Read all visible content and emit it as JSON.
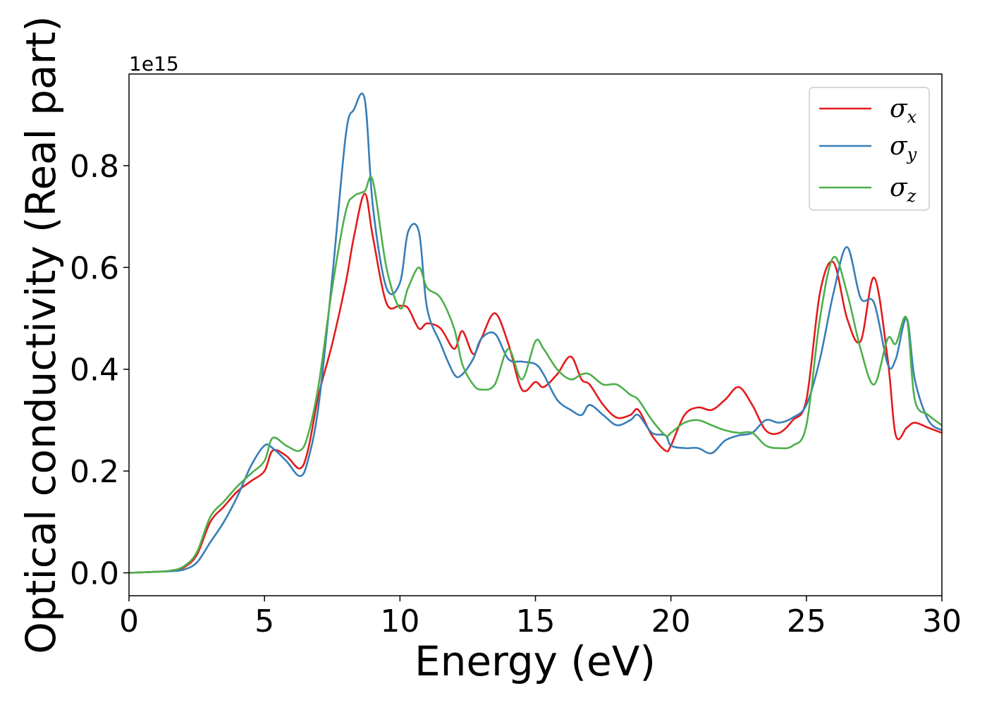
{
  "chart_data": {
    "type": "line",
    "title": "",
    "xlabel": "Energy (eV)",
    "ylabel": "Optical conductivity (Real part)",
    "y_offset_label": "1e15",
    "xlim": [
      0,
      30
    ],
    "ylim": [
      -0.045,
      0.98
    ],
    "x_ticks": [
      0,
      5,
      10,
      15,
      20,
      25,
      30
    ],
    "x_tick_labels": [
      "0",
      "5",
      "10",
      "15",
      "20",
      "25",
      "30"
    ],
    "y_ticks": [
      0.0,
      0.2,
      0.4,
      0.6,
      0.8
    ],
    "y_tick_labels": [
      "0.0",
      "0.2",
      "0.4",
      "0.6",
      "0.8"
    ],
    "grid": false,
    "legend_position": "top-right",
    "series": [
      {
        "name": "σx",
        "symbol": "σ",
        "subscript": "x",
        "color": "#e41a1c",
        "x": [
          0,
          1,
          1.5,
          2,
          2.5,
          3,
          3.5,
          4,
          4.5,
          5,
          5.3,
          5.8,
          6.3,
          6.6,
          7,
          7.5,
          8,
          8.3,
          8.7,
          9,
          9.5,
          10,
          10.3,
          10.7,
          11,
          11.5,
          12,
          12.3,
          12.7,
          13,
          13.5,
          14,
          14.5,
          15,
          15.3,
          15.8,
          16.3,
          16.7,
          17,
          17.5,
          18,
          18.5,
          18.8,
          19.3,
          19.8,
          20,
          20.5,
          21,
          21.5,
          22,
          22.5,
          23,
          23.5,
          24,
          24.5,
          25,
          25.5,
          26,
          26.5,
          27,
          27.5,
          28,
          28.3,
          28.7,
          29,
          29.5,
          30
        ],
        "y": [
          0,
          0.002,
          0.004,
          0.01,
          0.035,
          0.1,
          0.13,
          0.16,
          0.18,
          0.2,
          0.24,
          0.23,
          0.205,
          0.24,
          0.35,
          0.45,
          0.57,
          0.66,
          0.745,
          0.66,
          0.53,
          0.525,
          0.52,
          0.48,
          0.49,
          0.48,
          0.44,
          0.475,
          0.43,
          0.46,
          0.51,
          0.45,
          0.36,
          0.375,
          0.365,
          0.39,
          0.425,
          0.38,
          0.37,
          0.33,
          0.305,
          0.31,
          0.32,
          0.27,
          0.24,
          0.25,
          0.31,
          0.325,
          0.32,
          0.34,
          0.365,
          0.33,
          0.28,
          0.275,
          0.3,
          0.34,
          0.55,
          0.61,
          0.5,
          0.455,
          0.58,
          0.42,
          0.27,
          0.285,
          0.295,
          0.285,
          0.275
        ]
      },
      {
        "name": "σy",
        "symbol": "σ",
        "subscript": "y",
        "color": "#377eb8",
        "x": [
          0,
          1,
          1.5,
          2,
          2.5,
          3,
          3.5,
          4,
          4.5,
          5,
          5.3,
          5.8,
          6.3,
          6.6,
          7,
          7.5,
          8,
          8.3,
          8.7,
          9,
          9.5,
          10,
          10.3,
          10.7,
          11,
          11.5,
          12,
          12.3,
          12.7,
          13,
          13.5,
          14,
          14.5,
          15,
          15.3,
          15.8,
          16.3,
          16.7,
          17,
          17.5,
          18,
          18.5,
          18.8,
          19.3,
          19.8,
          20,
          20.5,
          21,
          21.5,
          22,
          22.5,
          23,
          23.5,
          24,
          24.5,
          25,
          25.5,
          26,
          26.5,
          27,
          27.5,
          28,
          28.3,
          28.7,
          29,
          29.5,
          30
        ],
        "y": [
          0,
          0.002,
          0.003,
          0.006,
          0.02,
          0.06,
          0.1,
          0.15,
          0.21,
          0.25,
          0.245,
          0.22,
          0.19,
          0.22,
          0.33,
          0.58,
          0.86,
          0.91,
          0.93,
          0.72,
          0.56,
          0.57,
          0.67,
          0.67,
          0.52,
          0.45,
          0.39,
          0.39,
          0.42,
          0.46,
          0.47,
          0.42,
          0.415,
          0.41,
          0.39,
          0.34,
          0.32,
          0.31,
          0.33,
          0.31,
          0.29,
          0.3,
          0.31,
          0.275,
          0.27,
          0.25,
          0.245,
          0.245,
          0.235,
          0.26,
          0.27,
          0.275,
          0.3,
          0.295,
          0.305,
          0.33,
          0.42,
          0.55,
          0.64,
          0.54,
          0.53,
          0.41,
          0.42,
          0.5,
          0.38,
          0.3,
          0.28
        ]
      },
      {
        "name": "σz",
        "symbol": "σ",
        "subscript": "z",
        "color": "#4daf4a",
        "x": [
          0,
          1,
          1.5,
          2,
          2.5,
          3,
          3.5,
          4,
          4.5,
          5,
          5.3,
          5.8,
          6.3,
          6.6,
          7,
          7.5,
          8,
          8.3,
          8.7,
          9,
          9.5,
          10,
          10.3,
          10.7,
          11,
          11.5,
          12,
          12.3,
          12.7,
          13,
          13.5,
          14,
          14.5,
          15,
          15.3,
          15.8,
          16.3,
          16.7,
          17,
          17.5,
          18,
          18.5,
          18.8,
          19.3,
          19.8,
          20,
          20.5,
          21,
          21.5,
          22,
          22.5,
          23,
          23.5,
          24,
          24.5,
          25,
          25.5,
          26,
          26.5,
          27,
          27.5,
          28,
          28.3,
          28.7,
          29,
          29.5,
          30
        ],
        "y": [
          0,
          0.002,
          0.004,
          0.012,
          0.04,
          0.11,
          0.14,
          0.17,
          0.195,
          0.22,
          0.265,
          0.25,
          0.24,
          0.27,
          0.37,
          0.56,
          0.71,
          0.74,
          0.75,
          0.77,
          0.6,
          0.52,
          0.56,
          0.6,
          0.56,
          0.54,
          0.48,
          0.41,
          0.37,
          0.36,
          0.37,
          0.44,
          0.38,
          0.455,
          0.44,
          0.4,
          0.38,
          0.39,
          0.39,
          0.37,
          0.37,
          0.35,
          0.34,
          0.3,
          0.27,
          0.275,
          0.295,
          0.3,
          0.29,
          0.28,
          0.275,
          0.275,
          0.25,
          0.245,
          0.25,
          0.29,
          0.5,
          0.62,
          0.55,
          0.44,
          0.37,
          0.46,
          0.45,
          0.5,
          0.34,
          0.31,
          0.29
        ]
      }
    ]
  }
}
